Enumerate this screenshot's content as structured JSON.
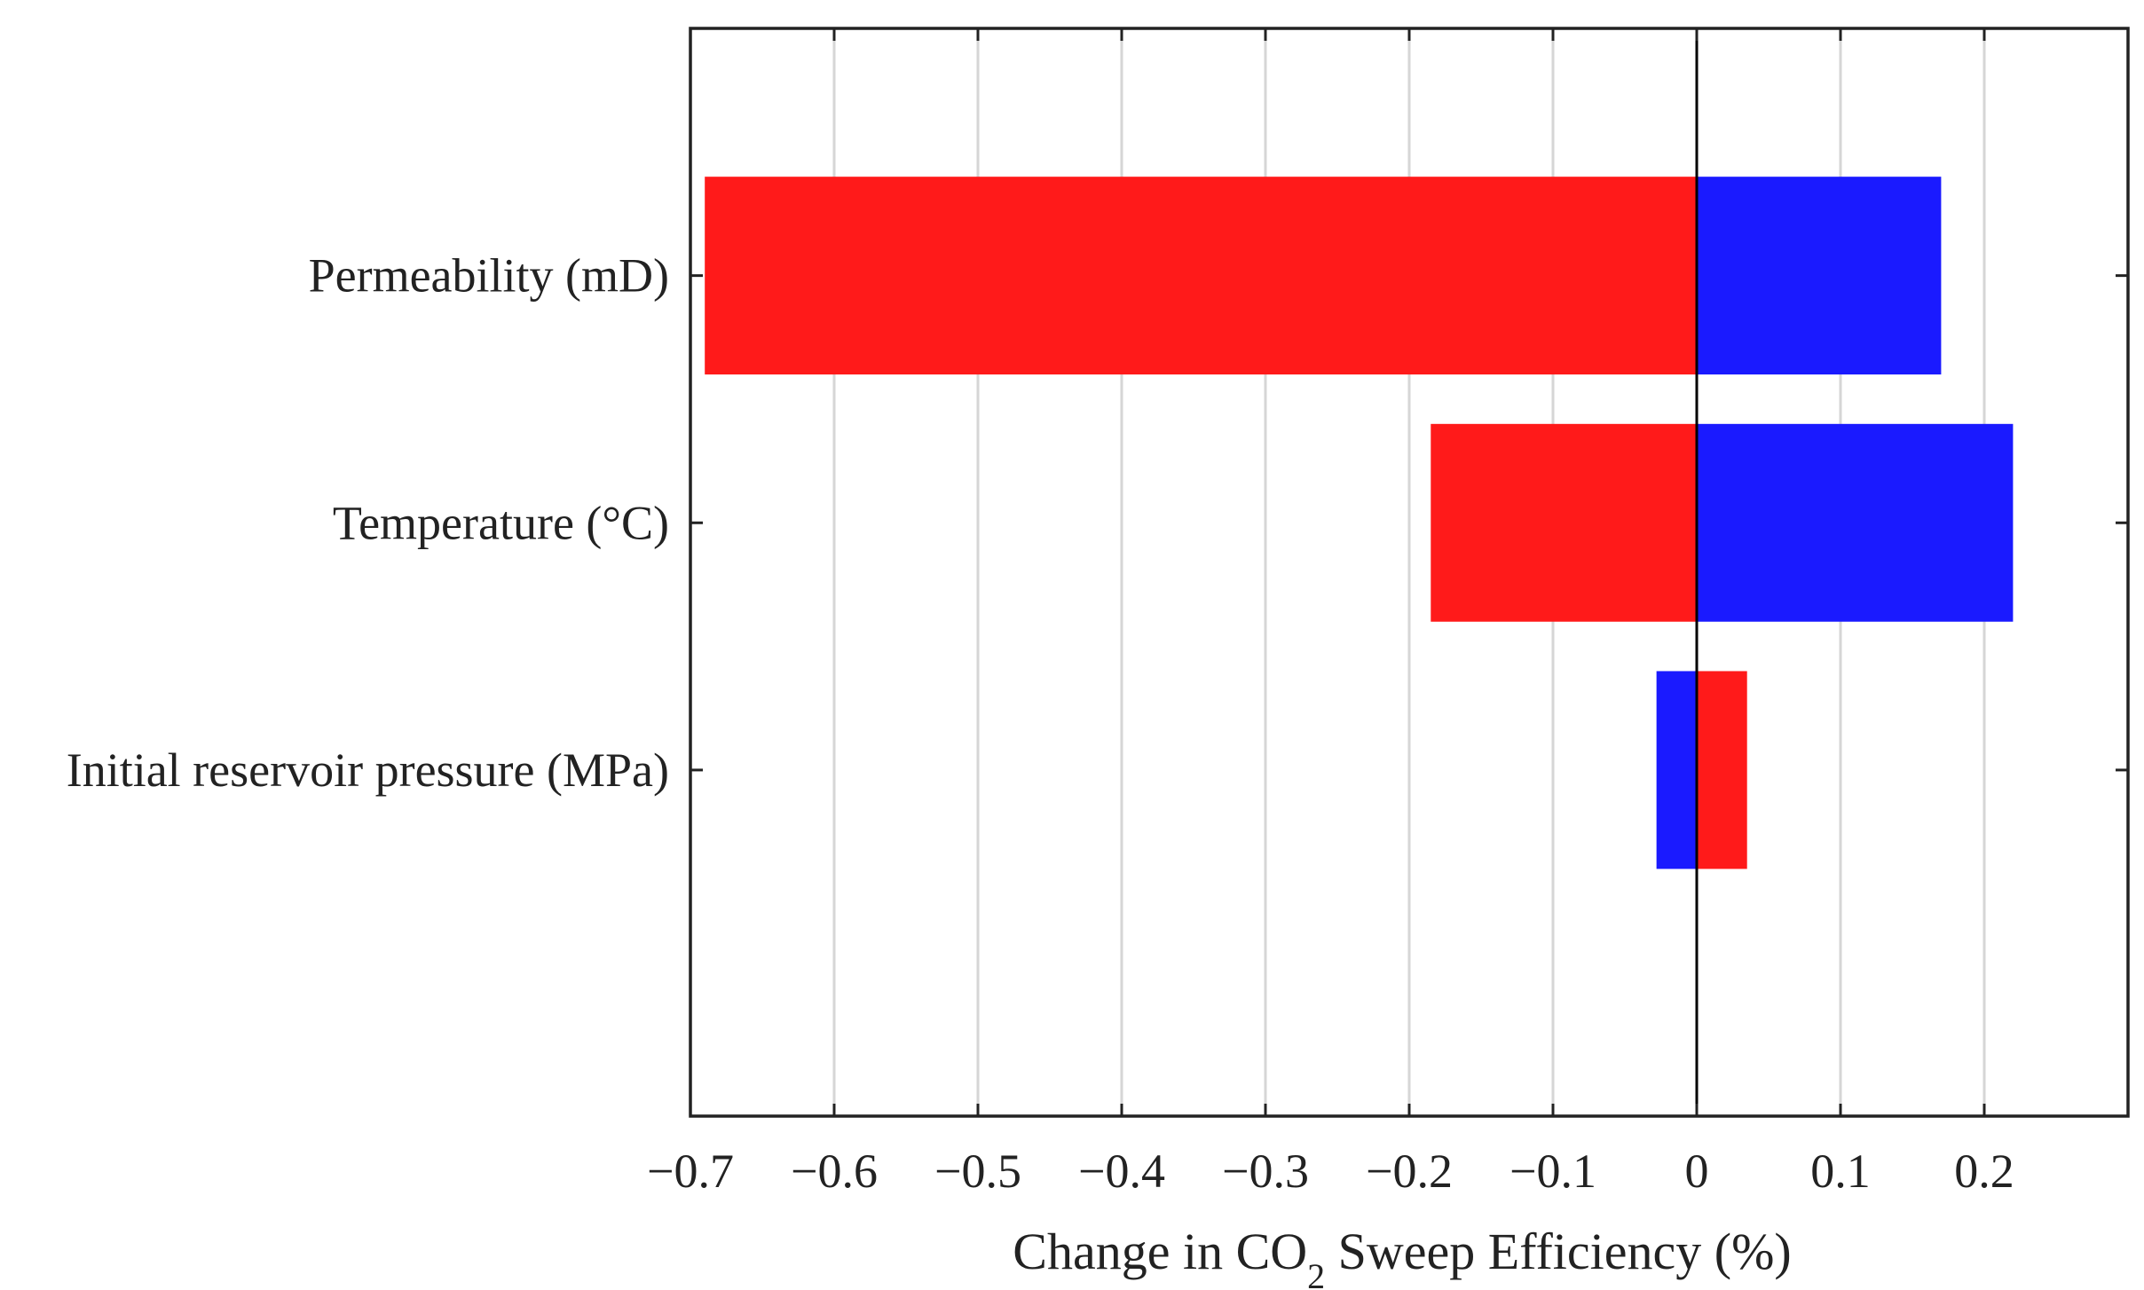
{
  "chart_data": {
    "type": "bar",
    "orientation": "horizontal",
    "style": "tornado",
    "title": "",
    "xlabel": {
      "prefix": "Change in CO",
      "subscript": "2",
      "suffix": " Sweep Efficiency (%)"
    },
    "ylabel": "",
    "xlim": [
      -0.7,
      0.3
    ],
    "xticks": [
      -0.7,
      -0.6,
      -0.5,
      -0.4,
      -0.3,
      -0.2,
      -0.1,
      0,
      0.1,
      0.2
    ],
    "xtick_labels": [
      "−0.7",
      "−0.6",
      "−0.5",
      "−0.4",
      "−0.3",
      "−0.2",
      "−0.1",
      "0",
      "0.1",
      "0.2"
    ],
    "grid": "vertical",
    "categories": [
      "Permeability (mD)",
      "Temperature (°C)",
      "Initial reservoir pressure (MPa)"
    ],
    "bars": [
      [
        {
          "from": -0.69,
          "to": 0,
          "color": "#ff1a1a"
        },
        {
          "from": 0,
          "to": 0.17,
          "color": "#1a1aff"
        }
      ],
      [
        {
          "from": -0.185,
          "to": 0,
          "color": "#ff1a1a"
        },
        {
          "from": 0,
          "to": 0.22,
          "color": "#1a1aff"
        }
      ],
      [
        {
          "from": -0.028,
          "to": 0,
          "color": "#1a1aff"
        },
        {
          "from": 0,
          "to": 0.035,
          "color": "#ff1a1a"
        }
      ]
    ]
  }
}
